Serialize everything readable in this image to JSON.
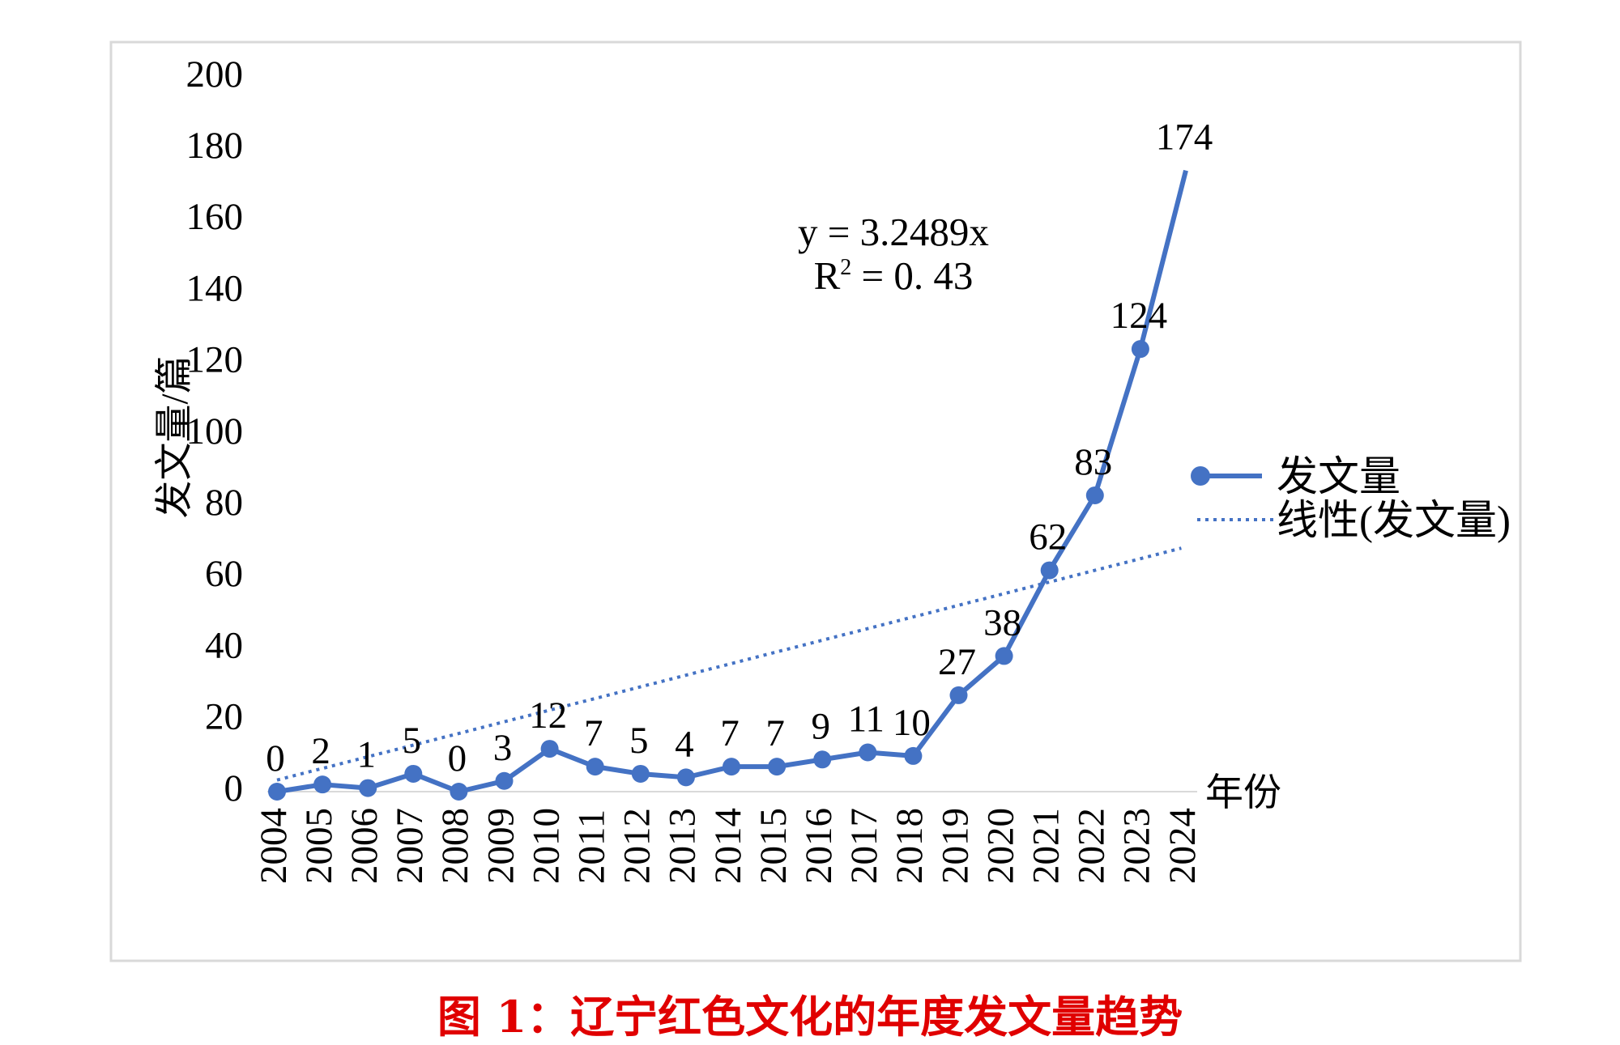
{
  "caption": "图 1：辽宁红色文化的年度发文量趋势",
  "colors": {
    "series": "#4472c4",
    "caption": "#e00000",
    "frame": "#d9d9d9"
  },
  "chart_data": {
    "type": "line",
    "title": "",
    "xlabel": "年份",
    "ylabel": "发文量/篇",
    "ylim": [
      0,
      200
    ],
    "yticks": [
      0,
      20,
      40,
      60,
      80,
      100,
      120,
      140,
      160,
      180,
      200
    ],
    "categories": [
      "2004",
      "2005",
      "2006",
      "2007",
      "2008",
      "2009",
      "2010",
      "2011",
      "2012",
      "2013",
      "2014",
      "2015",
      "2016",
      "2017",
      "2018",
      "2019",
      "2020",
      "2021",
      "2022",
      "2023",
      "2024"
    ],
    "series": [
      {
        "name": "发文量",
        "values": [
          0,
          2,
          1,
          5,
          0,
          3,
          12,
          7,
          5,
          4,
          7,
          7,
          9,
          11,
          10,
          27,
          38,
          62,
          83,
          124,
          174
        ],
        "marker": "circle",
        "style": "solid"
      }
    ],
    "trendline": {
      "name": "线性(发文量)",
      "equation": "y = 3.2489x",
      "r2_base": "R",
      "r2_sup": "2",
      "r2_rest": " = 0. 43",
      "style": "dotted",
      "start_value": 3.2489,
      "end_value": 68.2
    },
    "legend": "right",
    "grid": false
  }
}
